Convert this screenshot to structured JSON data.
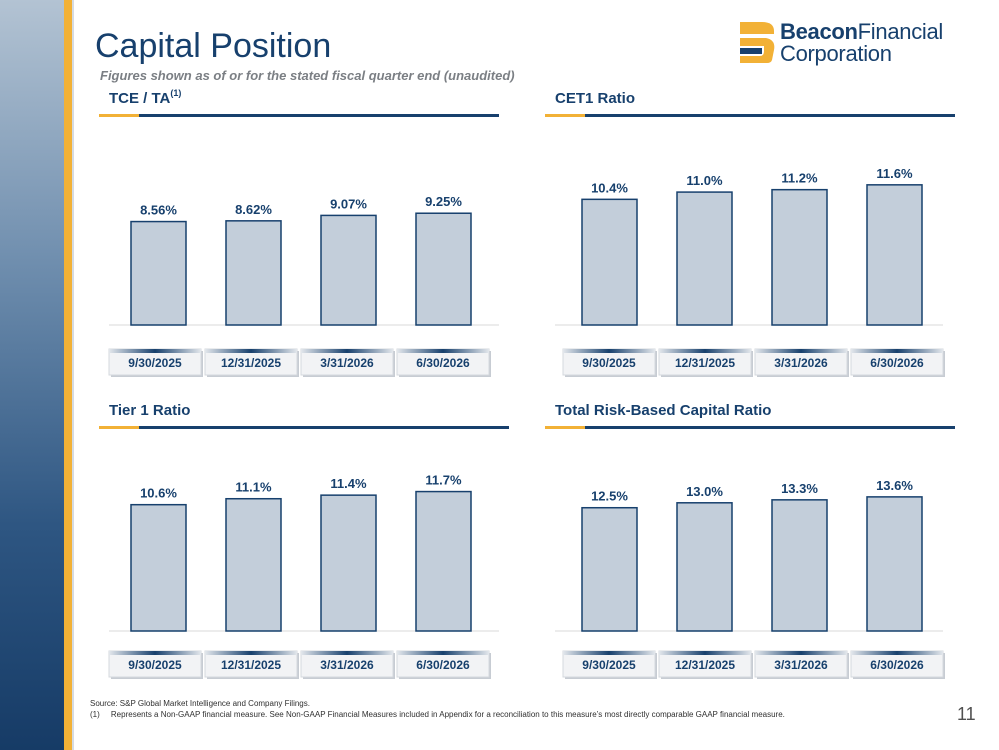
{
  "page": {
    "title": "Capital Position",
    "subtitle": "Figures shown as of or for the stated fiscal quarter end (unaudited)",
    "page_number": "11"
  },
  "logo": {
    "text_bold": "Beacon",
    "text_regular": "Financial",
    "line2": "Corporation"
  },
  "colors": {
    "navy": "#17406d",
    "gold": "#f2b136",
    "bar_fill": "#c3ceda"
  },
  "footnotes": {
    "source": "Source: S&P Global Market Intelligence and Company Filings.",
    "note1_marker": "(1)",
    "note1_text": "Represents a Non-GAAP financial measure. See Non-GAAP Financial Measures included in Appendix for a reconciliation to this measure’s most directly comparable GAAP financial measure."
  },
  "chart_data": [
    {
      "type": "bar",
      "title": "TCE / TA",
      "title_superscript": "(1)",
      "categories": [
        "9/30/2025",
        "12/31/2025",
        "3/31/2026",
        "6/30/2026"
      ],
      "values": [
        8.56,
        8.62,
        9.07,
        9.25
      ],
      "labels": [
        "8.56%",
        "8.62%",
        "9.07%",
        "9.25%"
      ],
      "unit": "%",
      "ylim": [
        0,
        12
      ],
      "grid": false
    },
    {
      "type": "bar",
      "title": "CET1 Ratio",
      "categories": [
        "9/30/2025",
        "12/31/2025",
        "3/31/2026",
        "6/30/2026"
      ],
      "values": [
        10.4,
        11.0,
        11.2,
        11.6
      ],
      "labels": [
        "10.4%",
        "11.0%",
        "11.2%",
        "11.6%"
      ],
      "unit": "%",
      "ylim": [
        0,
        12
      ],
      "grid": false
    },
    {
      "type": "bar",
      "title": "Tier 1 Ratio",
      "categories": [
        "9/30/2025",
        "12/31/2025",
        "3/31/2026",
        "6/30/2026"
      ],
      "values": [
        10.6,
        11.1,
        11.4,
        11.7
      ],
      "labels": [
        "10.6%",
        "11.1%",
        "11.4%",
        "11.7%"
      ],
      "unit": "%",
      "ylim": [
        0,
        12
      ],
      "grid": false
    },
    {
      "type": "bar",
      "title": "Total Risk-Based Capital Ratio",
      "categories": [
        "9/30/2025",
        "12/31/2025",
        "3/31/2026",
        "6/30/2026"
      ],
      "values": [
        12.5,
        13.0,
        13.3,
        13.6
      ],
      "labels": [
        "12.5%",
        "13.0%",
        "13.3%",
        "13.6%"
      ],
      "unit": "%",
      "ylim": [
        0,
        14.5
      ],
      "grid": false
    }
  ]
}
